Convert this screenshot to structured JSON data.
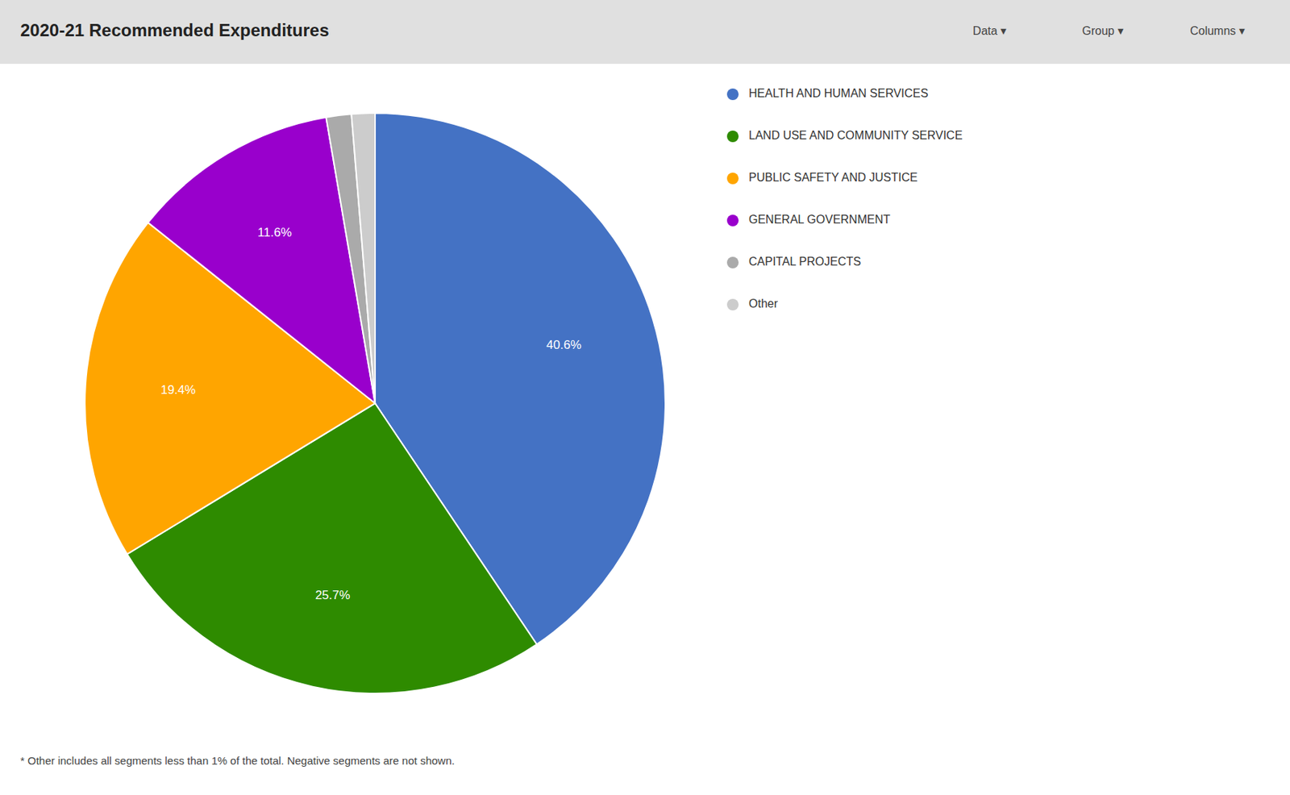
{
  "chart_data": {
    "type": "pie",
    "title": "2020-21 Recommended Expenditures",
    "categories": [
      "HEALTH AND HUMAN SERVICES",
      "LAND USE AND COMMUNITY SERVICE",
      "PUBLIC SAFETY AND JUSTICE",
      "GENERAL GOVERNMENT",
      "CAPITAL PROJECTS",
      "Other"
    ],
    "values": [
      40.6,
      25.7,
      19.4,
      11.6,
      1.4,
      1.3
    ],
    "value_labels": [
      "40.6%",
      "25.7%",
      "19.4%",
      "11.6%",
      null,
      null
    ],
    "colors": [
      "#4472C4",
      "#2E8B00",
      "#FFA500",
      "#9900CC",
      "#AAAAAA",
      "#CCCCCC"
    ],
    "data_labels": true,
    "legend": "right",
    "annotations": [
      "* Other includes all segments less than 1% of the total. Negative segments are not shown."
    ]
  },
  "nav_buttons": [
    "Data ▾",
    "Group ▾",
    "Columns ▾"
  ]
}
